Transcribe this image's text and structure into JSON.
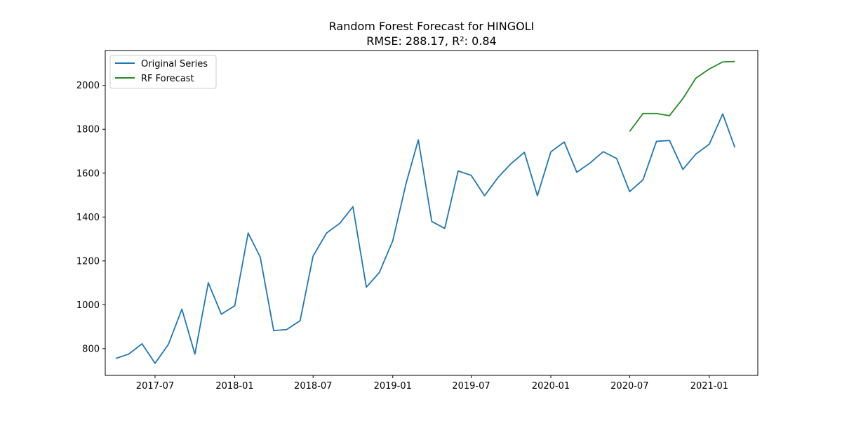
{
  "chart_data": {
    "type": "line",
    "title": "Random Forest Forecast for HINGOLI",
    "subtitle": "RMSE: 288.17, R²: 0.84",
    "xlabel": "",
    "ylabel": "",
    "x_range": [
      "2017-03-08",
      "2021-04-23"
    ],
    "ylim": [
      678,
      2159
    ],
    "grid": false,
    "legend_position": "top-left",
    "x_ticks": [
      "2017-07",
      "2018-01",
      "2018-07",
      "2019-01",
      "2019-07",
      "2020-01",
      "2020-07",
      "2021-01"
    ],
    "y_ticks": [
      800,
      1000,
      1200,
      1400,
      1600,
      1800,
      2000
    ],
    "series": [
      {
        "name": "Original Series",
        "color": "#1f77b4",
        "x": [
          "2017-04",
          "2017-05",
          "2017-06",
          "2017-07",
          "2017-08",
          "2017-09",
          "2017-10",
          "2017-11",
          "2017-12",
          "2018-01",
          "2018-02",
          "2018-03",
          "2018-04",
          "2018-05",
          "2018-06",
          "2018-07",
          "2018-08",
          "2018-09",
          "2018-10",
          "2018-11",
          "2018-12",
          "2019-01",
          "2019-02",
          "2019-03",
          "2019-04",
          "2019-05",
          "2019-06",
          "2019-07",
          "2019-08",
          "2019-09",
          "2019-10",
          "2019-11",
          "2019-12",
          "2020-01",
          "2020-02",
          "2020-03",
          "2020-04",
          "2020-05",
          "2020-06",
          "2020-07",
          "2020-08",
          "2020-09",
          "2020-10",
          "2020-11",
          "2020-12",
          "2021-01",
          "2021-02",
          "2021-03"
        ],
        "values": [
          755,
          775,
          822,
          733,
          820,
          980,
          775,
          1100,
          957,
          995,
          1327,
          1217,
          882,
          887,
          927,
          1222,
          1327,
          1372,
          1447,
          1080,
          1147,
          1292,
          1555,
          1752,
          1380,
          1348,
          1610,
          1590,
          1497,
          1580,
          1643,
          1695,
          1497,
          1697,
          1742,
          1604,
          1647,
          1698,
          1667,
          1516,
          1570,
          1745,
          1749,
          1617,
          1687,
          1732,
          1870,
          1717
        ]
      },
      {
        "name": "RF Forecast",
        "color": "#228b22",
        "x": [
          "2020-07",
          "2020-08",
          "2020-09",
          "2020-10",
          "2020-11",
          "2020-12",
          "2021-01",
          "2021-02",
          "2021-03"
        ],
        "values": [
          1790,
          1872,
          1872,
          1862,
          1940,
          2033,
          2075,
          2107,
          2109
        ]
      }
    ]
  }
}
